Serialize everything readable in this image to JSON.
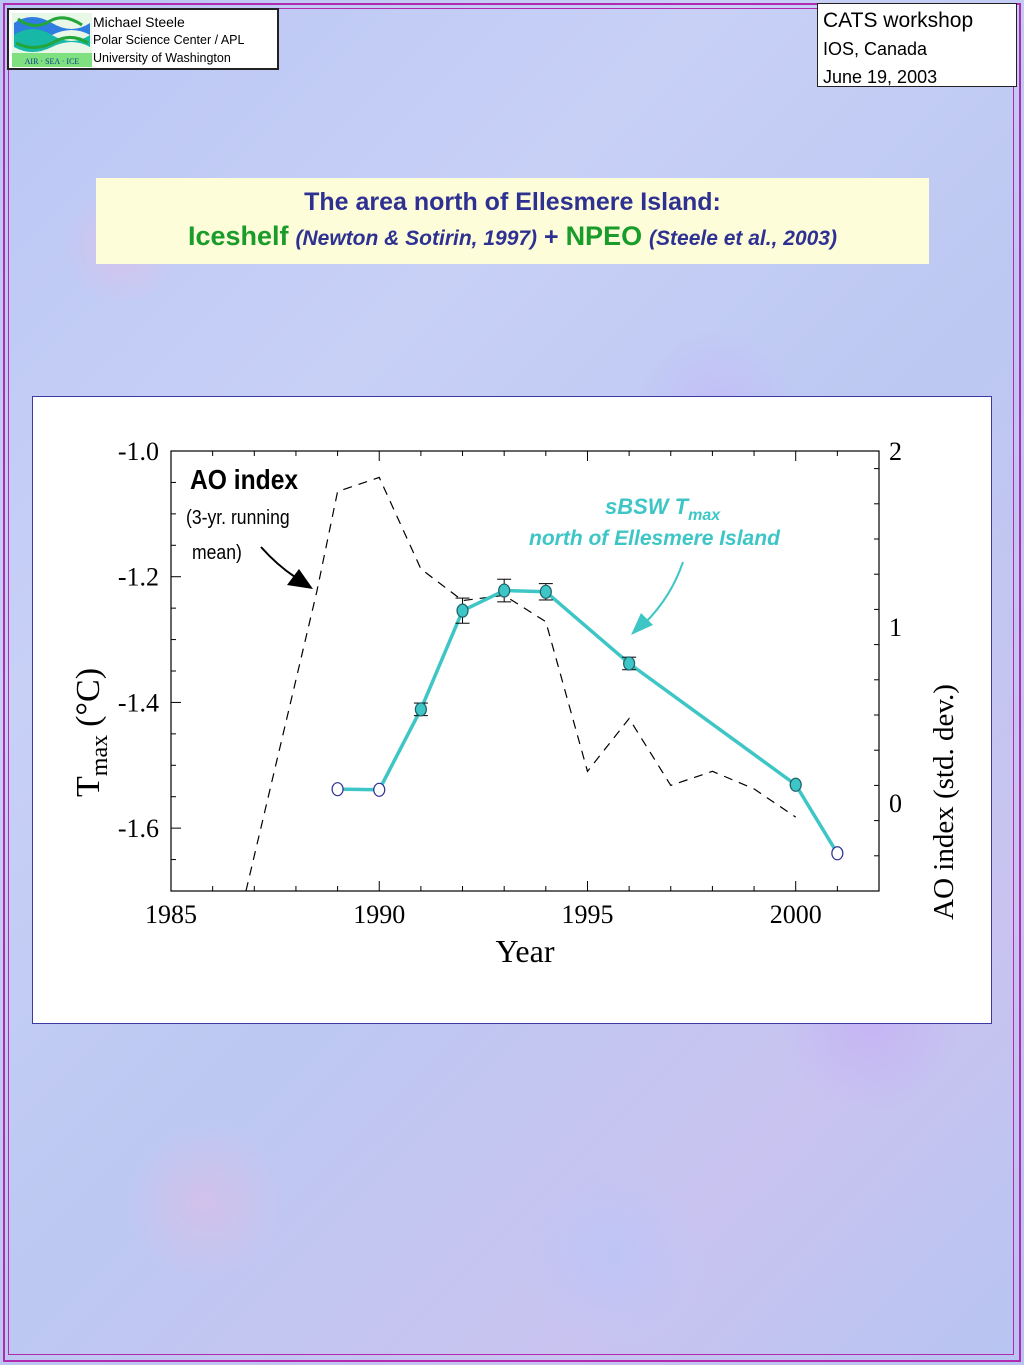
{
  "header_left": {
    "logo_text": "AIR · SEA · ICE",
    "name": "Michael Steele",
    "affiliation": "Polar Science Center / APL",
    "university": "University of Washington"
  },
  "header_right": {
    "event": "CATS workshop",
    "location": "IOS, Canada",
    "date": "June 19, 2003"
  },
  "title": {
    "line1": "The area north of Ellesmere Island:",
    "iceshelf": "Iceshelf",
    "iceshelf_cite": "(Newton & Sotirin, 1997)",
    "plus": "+",
    "npeo": "NPEO",
    "npeo_cite": "(Steele et al., 2003)"
  },
  "colors": {
    "frame": "#b02bb0",
    "title_blue": "#2e3192",
    "title_green": "#1a9c2a",
    "title_bg": "#fdfdd9",
    "series_teal": "#3ec6c6",
    "panel_border": "#3d3a9f"
  },
  "chart_data": {
    "type": "line",
    "xlabel": "Year",
    "ylabel": "T",
    "ylabel_sub": "max",
    "ylabel_unit": "(°C)",
    "y2label": "AO index (std. dev.)",
    "xlim": [
      1985,
      2002
    ],
    "ylim": [
      -1.7,
      -1.0
    ],
    "y2lim": [
      -0.5,
      2
    ],
    "x_ticks": [
      1985,
      1990,
      1995,
      2000
    ],
    "y_ticks": [
      -1.0,
      -1.2,
      -1.4,
      -1.6
    ],
    "y_tick_labels": [
      "-1.0",
      "-1.2",
      "-1.4",
      "-1.6"
    ],
    "y2_ticks": [
      0,
      1,
      2
    ],
    "grid": false,
    "series": [
      {
        "name": "sBSW T",
        "name_sub": "max",
        "name_line2": "north of Ellesmere Island",
        "axis": "left",
        "style": "solid",
        "color": "#3ec6c6",
        "points": [
          {
            "x": 1989,
            "y": -1.538,
            "err": 0,
            "marker": "open"
          },
          {
            "x": 1990,
            "y": -1.539,
            "err": 0,
            "marker": "open"
          },
          {
            "x": 1991,
            "y": -1.411,
            "err": 0.01,
            "marker": "filled"
          },
          {
            "x": 1992,
            "y": -1.254,
            "err": 0.02,
            "marker": "filled"
          },
          {
            "x": 1993,
            "y": -1.222,
            "err": 0.018,
            "marker": "filled"
          },
          {
            "x": 1994,
            "y": -1.224,
            "err": 0.013,
            "marker": "filled"
          },
          {
            "x": 1996,
            "y": -1.338,
            "err": 0.01,
            "marker": "filled"
          },
          {
            "x": 2000,
            "y": -1.531,
            "err": 0,
            "marker": "filled"
          },
          {
            "x": 2001,
            "y": -1.64,
            "err": 0,
            "marker": "open"
          }
        ]
      },
      {
        "name": "AO index",
        "name_line2": "(3-yr. running",
        "name_line3": "mean)",
        "axis": "right",
        "style": "dashed",
        "color": "#000000",
        "points": [
          {
            "x": 1986.8,
            "y": -0.5
          },
          {
            "x": 1988.5,
            "y": 1.2
          },
          {
            "x": 1989,
            "y": 1.77
          },
          {
            "x": 1990,
            "y": 1.85
          },
          {
            "x": 1991,
            "y": 1.33
          },
          {
            "x": 1992,
            "y": 1.15
          },
          {
            "x": 1993,
            "y": 1.18
          },
          {
            "x": 1994,
            "y": 1.03
          },
          {
            "x": 1995,
            "y": 0.18
          },
          {
            "x": 1996,
            "y": 0.48
          },
          {
            "x": 1997,
            "y": 0.1
          },
          {
            "x": 1998,
            "y": 0.18
          },
          {
            "x": 1999,
            "y": 0.08
          },
          {
            "x": 2000,
            "y": -0.08
          }
        ]
      }
    ]
  }
}
